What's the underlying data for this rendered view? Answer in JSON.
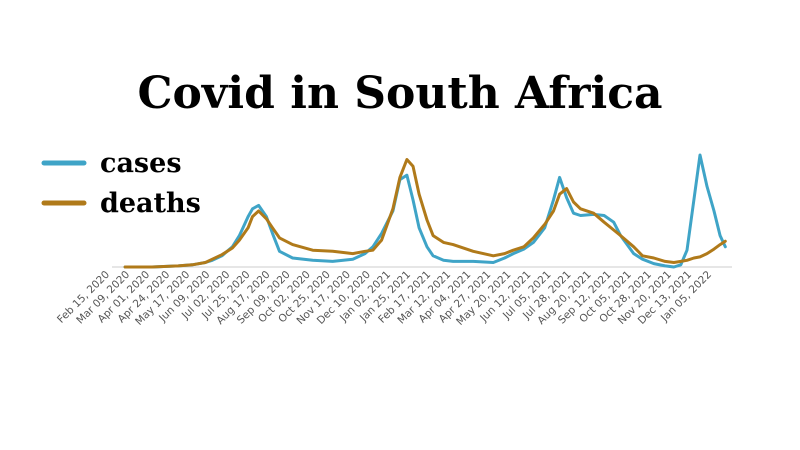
{
  "chart_data": {
    "type": "line",
    "title": "Covid in South Africa",
    "xlabel": "",
    "ylabel": "",
    "legend_position": "top-left",
    "grid": false,
    "x_tick_labels": [
      "Feb 15, 2020",
      "Mar 09, 2020",
      "Apr 01, 2020",
      "Apr 24, 2020",
      "May 17, 2020",
      "Jun 09, 2020",
      "Jul 02, 2020",
      "Jul 25, 2020",
      "Aug 17, 2020",
      "Sep 09, 2020",
      "Oct 02, 2020",
      "Oct 25, 2020",
      "Nov 17, 2020",
      "Dec 10, 2020",
      "Jan 02, 2021",
      "Jan 25, 2021",
      "Feb 17, 2021",
      "Mar 12, 2021",
      "Apr 04, 2021",
      "Apr 27, 2021",
      "May 20, 2021",
      "Jun 12, 2021",
      "Jul 05, 2021",
      "Jul 28, 2021",
      "Aug 20, 2021",
      "Sep 12, 2021",
      "Oct 05, 2021",
      "Oct 28, 2021",
      "Nov 20, 2021",
      "Dec 13, 2021",
      "Jan 05, 2022"
    ],
    "x": [
      "Mar 01, 2020",
      "Apr 01, 2020",
      "May 01, 2020",
      "May 17, 2020",
      "Jun 01, 2020",
      "Jun 09, 2020",
      "Jun 20, 2020",
      "Jul 02, 2020",
      "Jul 10, 2020",
      "Jul 20, 2020",
      "Jul 25, 2020",
      "Aug 01, 2020",
      "Aug 10, 2020",
      "Aug 17, 2020",
      "Aug 25, 2020",
      "Sep 09, 2020",
      "Oct 02, 2020",
      "Oct 25, 2020",
      "Nov 17, 2020",
      "Dec 01, 2020",
      "Dec 10, 2020",
      "Dec 20, 2020",
      "Jan 02, 2021",
      "Jan 10, 2021",
      "Jan 18, 2021",
      "Jan 25, 2021",
      "Feb 01, 2021",
      "Feb 10, 2021",
      "Feb 17, 2021",
      "Mar 01, 2021",
      "Mar 12, 2021",
      "Apr 04, 2021",
      "Apr 27, 2021",
      "May 10, 2021",
      "May 20, 2021",
      "Jun 01, 2021",
      "Jun 12, 2021",
      "Jun 25, 2021",
      "Jul 05, 2021",
      "Jul 12, 2021",
      "Jul 20, 2021",
      "Jul 28, 2021",
      "Aug 05, 2021",
      "Aug 20, 2021",
      "Sep 01, 2021",
      "Sep 12, 2021",
      "Sep 20, 2021",
      "Oct 05, 2021",
      "Oct 15, 2021",
      "Oct 28, 2021",
      "Nov 10, 2021",
      "Nov 20, 2021",
      "Nov 28, 2021",
      "Dec 05, 2021",
      "Dec 13, 2021",
      "Dec 20, 2021",
      "Dec 28, 2021",
      "Jan 05, 2022",
      "Jan 12, 2022",
      "Jan 18, 2022"
    ],
    "ylim": [
      0,
      100
    ],
    "series": [
      {
        "name": "cases",
        "color": "#3fa4c7",
        "values": [
          0,
          0,
          1,
          2,
          4,
          6,
          10,
          18,
          28,
          45,
          52,
          55,
          45,
          30,
          14,
          8,
          6,
          5,
          7,
          12,
          18,
          30,
          50,
          78,
          82,
          60,
          35,
          18,
          10,
          6,
          5,
          5,
          4,
          8,
          12,
          16,
          22,
          35,
          60,
          80,
          62,
          48,
          46,
          47,
          46,
          40,
          28,
          12,
          7,
          3,
          1,
          0,
          2,
          15,
          60,
          100,
          72,
          50,
          28,
          18
        ]
      },
      {
        "name": "deaths",
        "color": "#b07a1a",
        "values": [
          0,
          0,
          1,
          2,
          4,
          7,
          11,
          17,
          24,
          35,
          45,
          50,
          43,
          35,
          26,
          20,
          15,
          14,
          12,
          14,
          15,
          24,
          52,
          80,
          96,
          90,
          65,
          42,
          28,
          22,
          20,
          14,
          10,
          12,
          15,
          18,
          26,
          38,
          50,
          65,
          70,
          58,
          52,
          48,
          40,
          33,
          28,
          18,
          10,
          8,
          5,
          4,
          5,
          6,
          8,
          9,
          12,
          16,
          20,
          23
        ]
      }
    ]
  }
}
